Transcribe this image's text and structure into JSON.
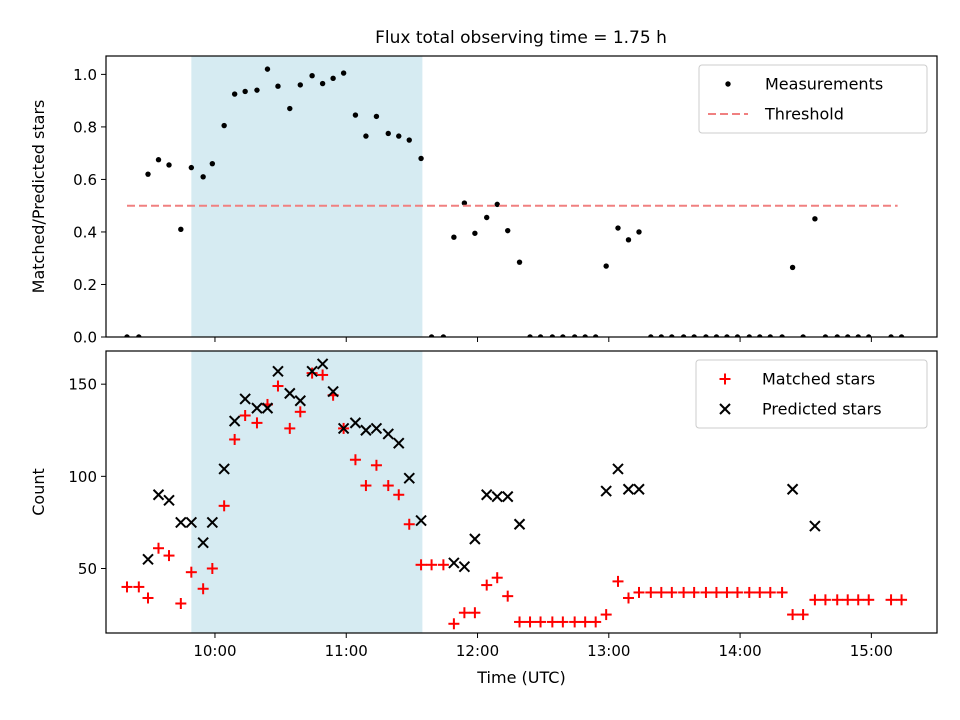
{
  "figure": {
    "title": "Flux total observing time = 1.75 h"
  },
  "chart_data": [
    {
      "type": "scatter",
      "ylabel": "Matched/Predicted stars",
      "xlabel": "",
      "xlim": [
        9.17,
        15.5
      ],
      "ylim": [
        0,
        1.07
      ],
      "x_ticks": [
        10,
        11,
        12,
        13,
        14,
        15
      ],
      "x_tick_labels": [
        "10:00",
        "11:00",
        "12:00",
        "13:00",
        "14:00",
        "15:00"
      ],
      "y_ticks": [
        0,
        0.2,
        0.4,
        0.6,
        0.8,
        1.0
      ],
      "y_tick_labels": [
        "0.0",
        "0.2",
        "0.4",
        "0.6",
        "0.8",
        "1.0"
      ],
      "shaded_span": [
        9.82,
        11.58
      ],
      "shaded_color": "#add8e6",
      "legend_position": "top-right",
      "series": [
        {
          "name": "Measurements",
          "kind": "dots",
          "color": "#000000",
          "x": [
            9.33,
            9.42,
            9.49,
            9.57,
            9.65,
            9.74,
            9.82,
            9.91,
            9.98,
            10.07,
            10.15,
            10.23,
            10.32,
            10.4,
            10.48,
            10.57,
            10.65,
            10.74,
            10.82,
            10.9,
            10.98,
            11.07,
            11.15,
            11.23,
            11.32,
            11.4,
            11.48,
            11.57,
            11.65,
            11.74,
            11.82,
            11.9,
            11.98,
            12.07,
            12.15,
            12.23,
            12.32,
            12.4,
            12.48,
            12.57,
            12.65,
            12.74,
            12.82,
            12.9,
            12.98,
            13.07,
            13.15,
            13.23,
            13.32,
            13.4,
            13.48,
            13.57,
            13.65,
            13.74,
            13.82,
            13.9,
            13.98,
            14.07,
            14.15,
            14.23,
            14.32,
            14.4,
            14.48,
            14.57,
            14.65,
            14.74,
            14.82,
            14.9,
            14.98,
            15.15,
            15.23
          ],
          "y": [
            0.0,
            0.0,
            0.62,
            0.675,
            0.655,
            0.41,
            0.645,
            0.61,
            0.66,
            0.805,
            0.925,
            0.935,
            0.94,
            1.02,
            0.955,
            0.87,
            0.96,
            0.995,
            0.965,
            0.985,
            1.005,
            0.845,
            0.765,
            0.84,
            0.775,
            0.765,
            0.75,
            0.68,
            0.0,
            0.0,
            0.38,
            0.51,
            0.395,
            0.455,
            0.505,
            0.405,
            0.285,
            0.0,
            0.0,
            0.0,
            0.0,
            0.0,
            0.0,
            0.0,
            0.27,
            0.415,
            0.37,
            0.4,
            0.0,
            0.0,
            0.0,
            0.0,
            0.0,
            0.0,
            0.0,
            0.0,
            0.0,
            0.0,
            0.0,
            0.0,
            0.0,
            0.265,
            0.0,
            0.45,
            0.0,
            0.0,
            0.0,
            0.0,
            0.0,
            0.0,
            0.0
          ]
        },
        {
          "name": "Threshold",
          "kind": "dashed-line",
          "color": "#f08080",
          "x": [
            9.33,
            15.2
          ],
          "y": [
            0.5,
            0.5
          ]
        }
      ]
    },
    {
      "type": "scatter",
      "ylabel": "Count",
      "xlabel": "Time (UTC)",
      "xlim": [
        9.17,
        15.5
      ],
      "ylim": [
        15,
        168
      ],
      "x_ticks": [
        10,
        11,
        12,
        13,
        14,
        15
      ],
      "x_tick_labels": [
        "10:00",
        "11:00",
        "12:00",
        "13:00",
        "14:00",
        "15:00"
      ],
      "y_ticks": [
        50,
        100,
        150
      ],
      "y_tick_labels": [
        "50",
        "100",
        "150"
      ],
      "shaded_span": [
        9.82,
        11.58
      ],
      "shaded_color": "#add8e6",
      "legend_position": "top-right",
      "series": [
        {
          "name": "Matched stars",
          "kind": "plus",
          "color": "#ff0000",
          "x": [
            9.33,
            9.42,
            9.49,
            9.57,
            9.65,
            9.74,
            9.82,
            9.91,
            9.98,
            10.07,
            10.15,
            10.23,
            10.32,
            10.4,
            10.48,
            10.57,
            10.65,
            10.74,
            10.82,
            10.9,
            10.98,
            11.07,
            11.15,
            11.23,
            11.32,
            11.4,
            11.48,
            11.57,
            11.65,
            11.74,
            11.82,
            11.9,
            11.98,
            12.07,
            12.15,
            12.23,
            12.32,
            12.4,
            12.48,
            12.57,
            12.65,
            12.74,
            12.82,
            12.9,
            12.98,
            13.07,
            13.15,
            13.23,
            13.32,
            13.4,
            13.48,
            13.57,
            13.65,
            13.74,
            13.82,
            13.9,
            13.98,
            14.07,
            14.15,
            14.23,
            14.32,
            14.4,
            14.48,
            14.57,
            14.65,
            14.74,
            14.82,
            14.9,
            14.98,
            15.15,
            15.23
          ],
          "y": [
            40,
            40,
            34,
            61,
            57,
            31,
            48,
            39,
            50,
            84,
            120,
            133,
            129,
            139,
            149,
            126,
            135,
            156,
            155,
            144,
            126,
            109,
            95,
            106,
            95,
            90,
            74,
            52,
            52,
            52,
            20,
            26,
            26,
            41,
            45,
            35,
            21,
            21,
            21,
            21,
            21,
            21,
            21,
            21,
            25,
            43,
            34,
            37,
            37,
            37,
            37,
            37,
            37,
            37,
            37,
            37,
            37,
            37,
            37,
            37,
            37,
            25,
            25,
            33,
            33,
            33,
            33,
            33,
            33,
            33,
            33
          ]
        },
        {
          "name": "Predicted stars",
          "kind": "x",
          "color": "#000000",
          "x": [
            9.49,
            9.57,
            9.65,
            9.74,
            9.82,
            9.91,
            9.98,
            10.07,
            10.15,
            10.23,
            10.32,
            10.4,
            10.48,
            10.57,
            10.65,
            10.74,
            10.82,
            10.9,
            10.98,
            11.07,
            11.15,
            11.23,
            11.32,
            11.4,
            11.48,
            11.57,
            11.82,
            11.9,
            11.98,
            12.07,
            12.15,
            12.23,
            12.32,
            12.98,
            13.07,
            13.15,
            13.23,
            14.4,
            14.57
          ],
          "y": [
            55,
            90,
            87,
            75,
            75,
            64,
            75,
            104,
            130,
            142,
            137,
            137,
            157,
            145,
            141,
            157,
            161,
            146,
            126,
            129,
            125,
            126,
            123,
            118,
            99,
            76,
            53,
            51,
            66,
            90,
            89,
            89,
            74,
            92,
            104,
            93,
            93,
            93,
            73
          ]
        }
      ]
    }
  ]
}
